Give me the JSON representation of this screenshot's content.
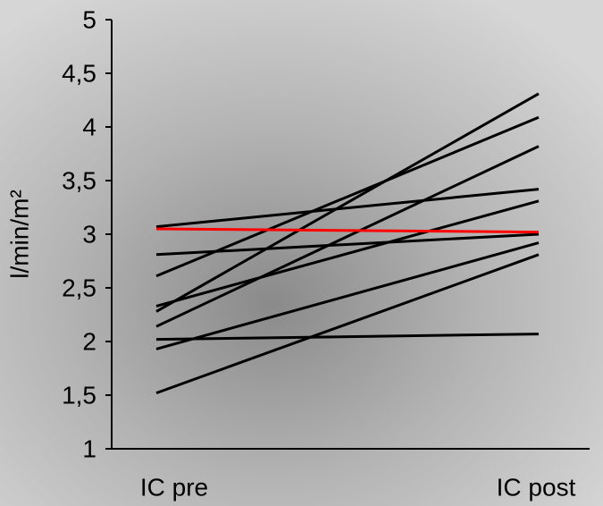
{
  "chart_data": {
    "type": "slope",
    "y_label": "l/min/m²",
    "categories": [
      "IC pre",
      "IC post"
    ],
    "ylim": [
      1,
      5
    ],
    "yticks": [
      1,
      {
        "value": 1.5,
        "label": "1,5"
      },
      2,
      {
        "value": 2.5,
        "label": "2,5"
      },
      3,
      {
        "value": 3.5,
        "label": "3,5"
      },
      4,
      {
        "value": 4.5,
        "label": "4,5"
      },
      5
    ],
    "series": [
      {
        "color": "#000000",
        "values": [
          3.07,
          3.42
        ]
      },
      {
        "color": "#000000",
        "values": [
          2.81,
          3.0
        ]
      },
      {
        "color": "#000000",
        "values": [
          2.61,
          4.09
        ]
      },
      {
        "color": "#000000",
        "values": [
          2.33,
          3.31
        ]
      },
      {
        "color": "#000000",
        "values": [
          2.28,
          4.31
        ]
      },
      {
        "color": "#000000",
        "values": [
          2.14,
          3.82
        ]
      },
      {
        "color": "#000000",
        "values": [
          2.02,
          2.07
        ]
      },
      {
        "color": "#000000",
        "values": [
          1.93,
          2.92
        ]
      },
      {
        "color": "#000000",
        "values": [
          1.52,
          2.81
        ]
      },
      {
        "color": "#ff0000",
        "values": [
          3.05,
          3.02
        ]
      }
    ]
  }
}
